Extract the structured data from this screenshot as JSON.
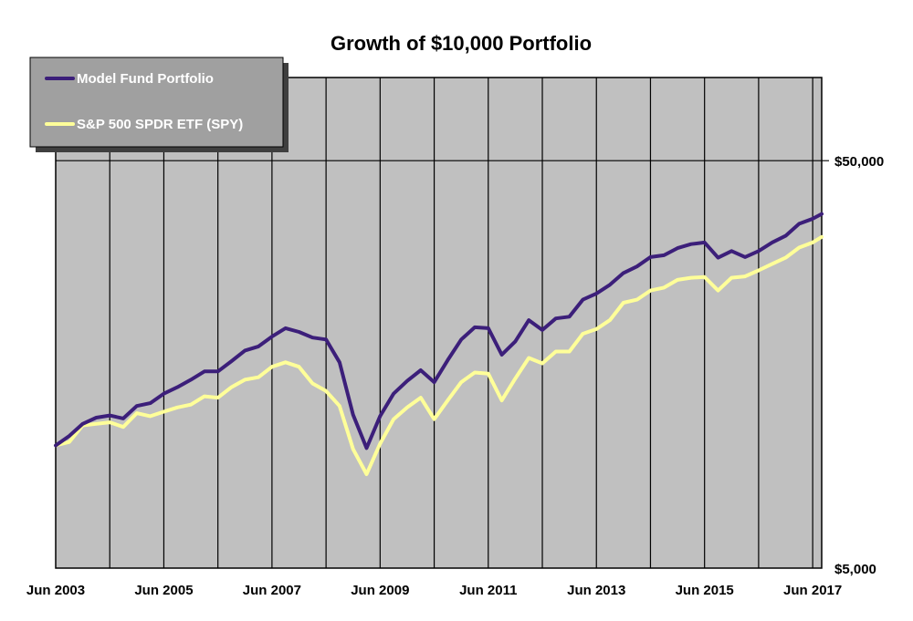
{
  "chart_data": {
    "type": "line",
    "title": "Growth of $10,000 Portfolio",
    "xlabel": "",
    "ylabel": "",
    "y_scale": "log",
    "ylim": [
      5000,
      80000
    ],
    "xlim": [
      "2003-06",
      "2017-08"
    ],
    "x_ticks": [
      "Jun 2003",
      "Jun 2005",
      "Jun 2007",
      "Jun 2009",
      "Jun 2011",
      "Jun 2013",
      "Jun 2015",
      "Jun 2017"
    ],
    "x_tick_dates": [
      "2003-06",
      "2005-06",
      "2007-06",
      "2009-06",
      "2011-06",
      "2013-06",
      "2015-06",
      "2017-06"
    ],
    "y_ticks": [
      {
        "value": 50000,
        "label": "$50,000"
      },
      {
        "value": 5000,
        "label": "$5,000"
      }
    ],
    "grid": true,
    "legend_position": "top-left",
    "colors": {
      "plot_bg": "#c0c0c0",
      "legend_bg": "#a0a0a0",
      "grid": "#000000"
    },
    "series": [
      {
        "name": "Model Fund Portfolio",
        "color": "#3c1f7a",
        "points": [
          [
            "2003-06",
            10000
          ],
          [
            "2003-09",
            10550
          ],
          [
            "2003-12",
            11300
          ],
          [
            "2004-03",
            11700
          ],
          [
            "2004-06",
            11850
          ],
          [
            "2004-09",
            11650
          ],
          [
            "2004-12",
            12500
          ],
          [
            "2005-03",
            12700
          ],
          [
            "2005-06",
            13400
          ],
          [
            "2005-09",
            13900
          ],
          [
            "2005-12",
            14500
          ],
          [
            "2006-03",
            15200
          ],
          [
            "2006-06",
            15200
          ],
          [
            "2006-09",
            16100
          ],
          [
            "2006-12",
            17100
          ],
          [
            "2007-03",
            17500
          ],
          [
            "2007-06",
            18500
          ],
          [
            "2007-09",
            19400
          ],
          [
            "2007-12",
            19000
          ],
          [
            "2008-03",
            18400
          ],
          [
            "2008-06",
            18200
          ],
          [
            "2008-09",
            16000
          ],
          [
            "2008-12",
            11900
          ],
          [
            "2009-03",
            9850
          ],
          [
            "2009-06",
            11800
          ],
          [
            "2009-09",
            13400
          ],
          [
            "2009-12",
            14400
          ],
          [
            "2010-03",
            15300
          ],
          [
            "2010-06",
            14300
          ],
          [
            "2010-09",
            16200
          ],
          [
            "2010-12",
            18200
          ],
          [
            "2011-03",
            19500
          ],
          [
            "2011-06",
            19400
          ],
          [
            "2011-09",
            16700
          ],
          [
            "2011-12",
            18000
          ],
          [
            "2012-03",
            20300
          ],
          [
            "2012-06",
            19200
          ],
          [
            "2012-09",
            20500
          ],
          [
            "2012-12",
            20700
          ],
          [
            "2013-03",
            22800
          ],
          [
            "2013-06",
            23600
          ],
          [
            "2013-09",
            24800
          ],
          [
            "2013-12",
            26500
          ],
          [
            "2014-03",
            27500
          ],
          [
            "2014-06",
            29000
          ],
          [
            "2014-09",
            29300
          ],
          [
            "2014-12",
            30500
          ],
          [
            "2015-03",
            31200
          ],
          [
            "2015-06",
            31500
          ],
          [
            "2015-09",
            28900
          ],
          [
            "2015-12",
            30000
          ],
          [
            "2016-03",
            29000
          ],
          [
            "2016-06",
            30000
          ],
          [
            "2016-09",
            31500
          ],
          [
            "2016-12",
            32700
          ],
          [
            "2017-03",
            35000
          ],
          [
            "2017-06",
            36000
          ],
          [
            "2017-08",
            37000
          ]
        ]
      },
      {
        "name": "S&P 500 SPDR ETF (SPY)",
        "color": "#ffff99",
        "points": [
          [
            "2003-06",
            10000
          ],
          [
            "2003-09",
            10200
          ],
          [
            "2003-12",
            11200
          ],
          [
            "2004-03",
            11300
          ],
          [
            "2004-06",
            11400
          ],
          [
            "2004-09",
            11100
          ],
          [
            "2004-12",
            12000
          ],
          [
            "2005-03",
            11800
          ],
          [
            "2005-06",
            12100
          ],
          [
            "2005-09",
            12400
          ],
          [
            "2005-12",
            12600
          ],
          [
            "2006-03",
            13200
          ],
          [
            "2006-06",
            13100
          ],
          [
            "2006-09",
            13900
          ],
          [
            "2006-12",
            14500
          ],
          [
            "2007-03",
            14700
          ],
          [
            "2007-06",
            15600
          ],
          [
            "2007-09",
            16000
          ],
          [
            "2007-12",
            15600
          ],
          [
            "2008-03",
            14200
          ],
          [
            "2008-06",
            13600
          ],
          [
            "2008-09",
            12500
          ],
          [
            "2008-12",
            9800
          ],
          [
            "2009-03",
            8500
          ],
          [
            "2009-06",
            10100
          ],
          [
            "2009-09",
            11600
          ],
          [
            "2009-12",
            12400
          ],
          [
            "2010-03",
            13100
          ],
          [
            "2010-06",
            11600
          ],
          [
            "2010-09",
            12900
          ],
          [
            "2010-12",
            14300
          ],
          [
            "2011-03",
            15100
          ],
          [
            "2011-06",
            15000
          ],
          [
            "2011-09",
            12900
          ],
          [
            "2011-12",
            14600
          ],
          [
            "2012-03",
            16400
          ],
          [
            "2012-06",
            15900
          ],
          [
            "2012-09",
            17000
          ],
          [
            "2012-12",
            17000
          ],
          [
            "2013-03",
            18800
          ],
          [
            "2013-06",
            19300
          ],
          [
            "2013-09",
            20300
          ],
          [
            "2013-12",
            22400
          ],
          [
            "2014-03",
            22800
          ],
          [
            "2014-06",
            24000
          ],
          [
            "2014-09",
            24400
          ],
          [
            "2014-12",
            25500
          ],
          [
            "2015-03",
            25800
          ],
          [
            "2015-06",
            25900
          ],
          [
            "2015-09",
            24000
          ],
          [
            "2015-12",
            25800
          ],
          [
            "2016-03",
            26000
          ],
          [
            "2016-06",
            26900
          ],
          [
            "2016-09",
            27900
          ],
          [
            "2016-12",
            28900
          ],
          [
            "2017-03",
            30600
          ],
          [
            "2017-06",
            31500
          ],
          [
            "2017-08",
            32500
          ]
        ]
      }
    ]
  }
}
